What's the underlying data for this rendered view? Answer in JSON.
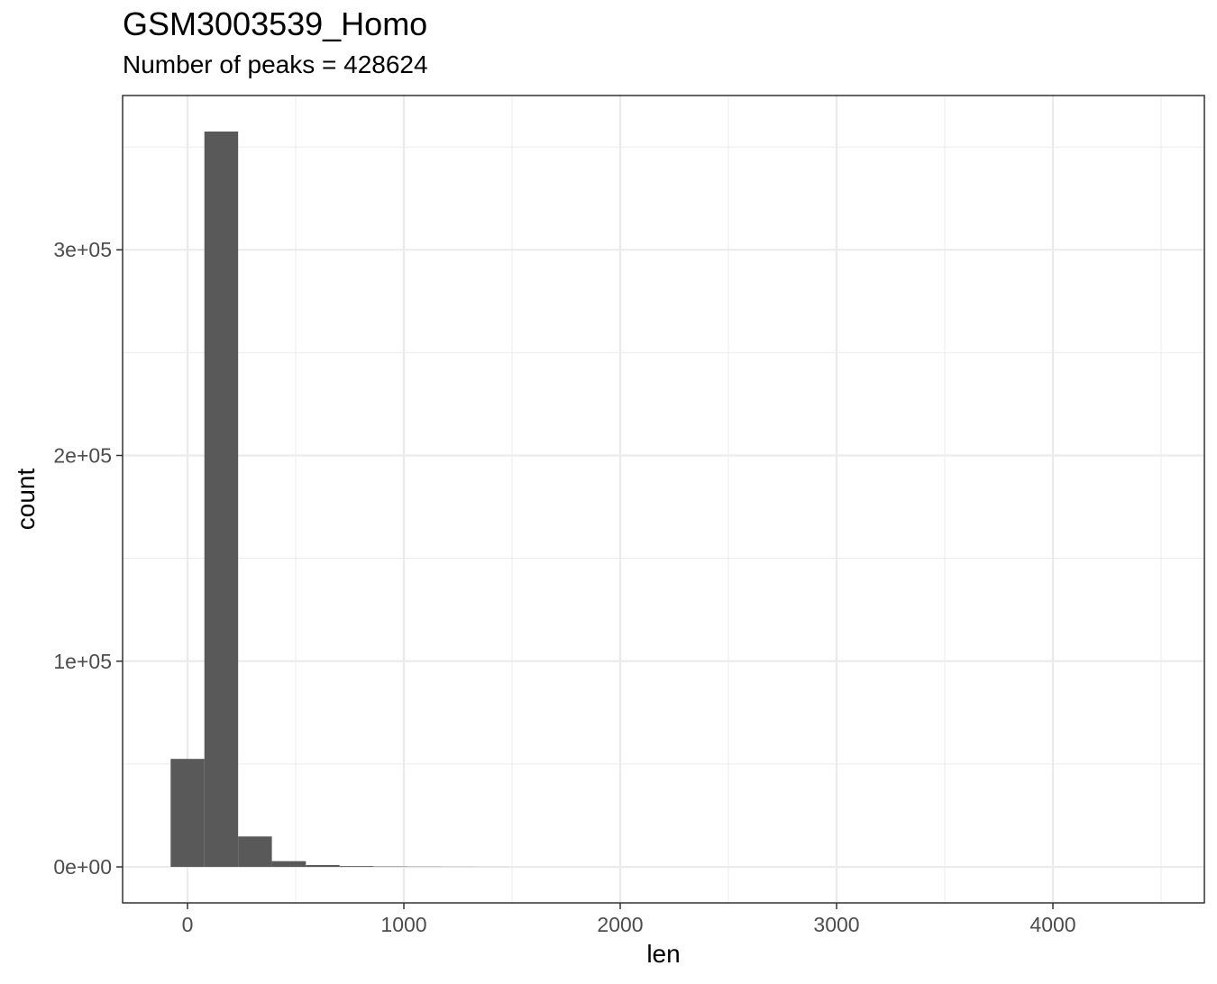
{
  "chart_data": {
    "type": "bar",
    "title": "GSM3003539_Homo",
    "subtitle": "Number of peaks = 428624",
    "xlabel": "len",
    "ylabel": "count",
    "xlim": [
      -300,
      4700
    ],
    "ylim": [
      -17500,
      375000
    ],
    "x_ticks": [
      0,
      1000,
      2000,
      3000,
      4000
    ],
    "x_tick_labels": [
      "0",
      "1000",
      "2000",
      "3000",
      "4000"
    ],
    "y_ticks": [
      0,
      100000,
      200000,
      300000
    ],
    "y_tick_labels": [
      "0e+00",
      "1e+05",
      "2e+05",
      "3e+05"
    ],
    "bin_width": 156.2,
    "bins": [
      {
        "x0": -78,
        "x1": 78,
        "count": 52500
      },
      {
        "x0": 78,
        "x1": 234,
        "count": 357500
      },
      {
        "x0": 234,
        "x1": 390,
        "count": 14800
      },
      {
        "x0": 390,
        "x1": 547,
        "count": 2800
      },
      {
        "x0": 547,
        "x1": 703,
        "count": 900
      },
      {
        "x0": 703,
        "x1": 859,
        "count": 400
      },
      {
        "x0": 859,
        "x1": 1015,
        "count": 200
      },
      {
        "x0": 1015,
        "x1": 1172,
        "count": 120
      },
      {
        "x0": 1172,
        "x1": 1328,
        "count": 70
      },
      {
        "x0": 1328,
        "x1": 1484,
        "count": 40
      }
    ],
    "grid": true,
    "bar_color": "#595959",
    "grid_color": "#ebebeb",
    "panel_border_color": "#333333"
  }
}
